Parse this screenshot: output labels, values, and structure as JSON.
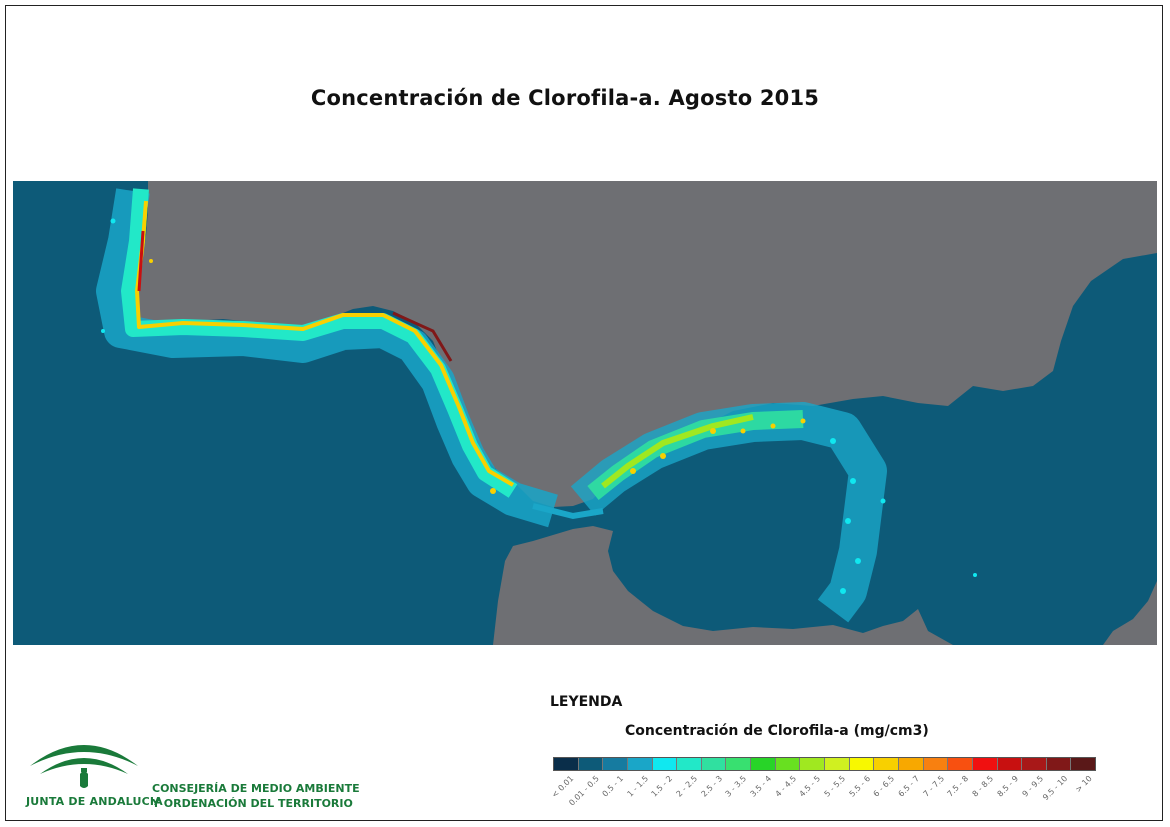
{
  "title": "Concentración de Clorofila-a. Agosto 2015",
  "legend": {
    "heading": "LEYENDA",
    "subtitle": "Concentración de Clorofila-a (mg/cm3)",
    "classes": [
      {
        "label": "< 0.01",
        "color": "#0a2e4a"
      },
      {
        "label": "0.01 - 0.5",
        "color": "#0d5a78"
      },
      {
        "label": "0.5 - 1",
        "color": "#167ba0"
      },
      {
        "label": "1 - 1.5",
        "color": "#1aa6c8"
      },
      {
        "label": "1.5 - 2",
        "color": "#10e8f0"
      },
      {
        "label": "2 - 2.5",
        "color": "#22e8c8"
      },
      {
        "label": "2.5 - 3",
        "color": "#30e0a0"
      },
      {
        "label": "3 - 3.5",
        "color": "#38e070"
      },
      {
        "label": "3.5 - 4",
        "color": "#28d428"
      },
      {
        "label": "4 - 4.5",
        "color": "#68e020"
      },
      {
        "label": "4.5 - 5",
        "color": "#a0e820"
      },
      {
        "label": "5 - 5.5",
        "color": "#d0f020"
      },
      {
        "label": "5.5 - 6",
        "color": "#f8f800"
      },
      {
        "label": "6 - 6.5",
        "color": "#f8d000"
      },
      {
        "label": "6.5 - 7",
        "color": "#f8a800"
      },
      {
        "label": "7 - 7.5",
        "color": "#f88010"
      },
      {
        "label": "7.5 - 8",
        "color": "#f85010"
      },
      {
        "label": "8 - 8.5",
        "color": "#f01010"
      },
      {
        "label": "8.5 - 9",
        "color": "#c81010"
      },
      {
        "label": "9 - 9.5",
        "color": "#a81818"
      },
      {
        "label": "9.5 - 10",
        "color": "#801818"
      },
      {
        "label": "> 10",
        "color": "#5a1818"
      }
    ]
  },
  "map": {
    "land_color": "#6e6f73",
    "sea_color": "#0d5a78"
  },
  "logo": {
    "name": "JUNTA DE ANDALUCIA",
    "department_line1": "CONSEJERÍA DE MEDIO AMBIENTE",
    "department_line2": "Y ORDENACIÓN DEL TERRITORIO",
    "color": "#1a7a3a"
  }
}
